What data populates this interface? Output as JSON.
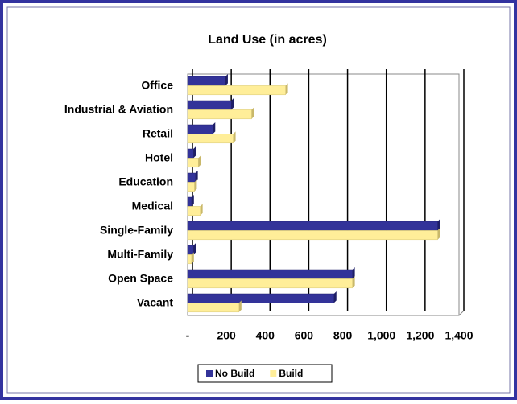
{
  "chart_data": {
    "type": "hbar",
    "title": "Land Use (in acres)",
    "categories": [
      "Office",
      "Industrial & Aviation",
      "Retail",
      "Hotel",
      "Education",
      "Medical",
      "Single-Family",
      "Multi-Family",
      "Open Space",
      "Vacant"
    ],
    "series": [
      {
        "name": "No Build",
        "color": "#333399",
        "values": [
          195,
          225,
          130,
          30,
          40,
          20,
          1290,
          30,
          850,
          755
        ]
      },
      {
        "name": "Build",
        "color": "#ffee99",
        "values": [
          505,
          330,
          235,
          55,
          35,
          65,
          1290,
          20,
          850,
          265
        ]
      }
    ],
    "xlim": [
      0,
      1400
    ],
    "xticks": [
      {
        "value": 0,
        "label": "-"
      },
      200,
      400,
      600,
      800,
      {
        "value": 1000,
        "label": "1,000"
      },
      {
        "value": 1200,
        "label": "1,200"
      },
      {
        "value": 1400,
        "label": "1,400"
      }
    ],
    "grid": true,
    "legend": "bottom"
  }
}
